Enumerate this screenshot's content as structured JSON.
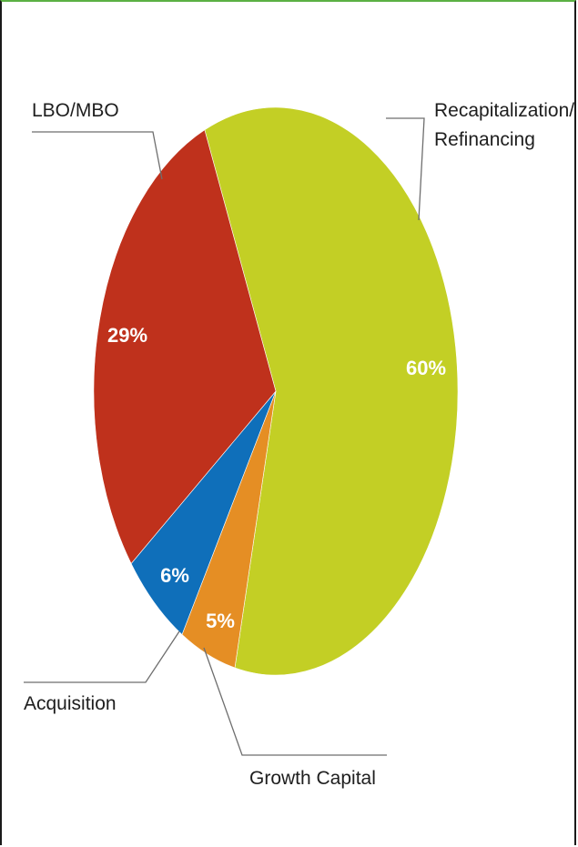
{
  "chart_data": {
    "type": "pie",
    "title": "",
    "slices": [
      {
        "name": "Recapitalization/ Refinancing",
        "label_lines": [
          "Recapitalization/",
          "Refinancing"
        ],
        "value": 60,
        "pct_label": "60%",
        "color": "#c3cf25"
      },
      {
        "name": "Growth Capital",
        "label_lines": [
          "Growth Capital"
        ],
        "value": 5,
        "pct_label": "5%",
        "color": "#e58e24"
      },
      {
        "name": "Acquisition",
        "label_lines": [
          "Acquisition"
        ],
        "value": 6,
        "pct_label": "6%",
        "color": "#0f6fba"
      },
      {
        "name": "LBO/MBO",
        "label_lines": [
          "LBO/MBO"
        ],
        "value": 29,
        "pct_label": "29%",
        "color": "#bf311c"
      }
    ]
  }
}
